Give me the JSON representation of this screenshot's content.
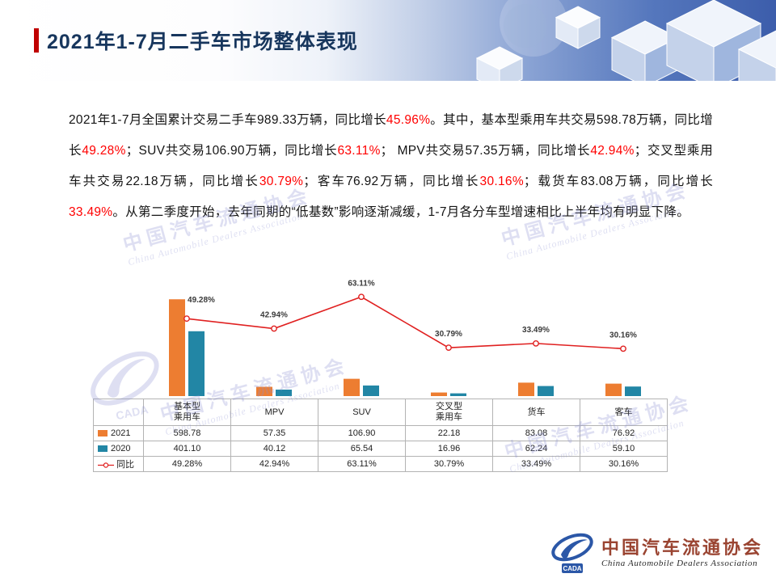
{
  "slide": {
    "title": "2021年1-7月二手车市场整体表现"
  },
  "paragraph": {
    "highlight_color": "#ff0000",
    "segments": [
      {
        "text": "2021年1-7月全国累计交易二手车989.33万辆，同比增长",
        "highlight": false
      },
      {
        "text": "45.96%",
        "highlight": true
      },
      {
        "text": "。其中，基本型乘用车共交易598.78万辆，同比增长",
        "highlight": false
      },
      {
        "text": "49.28%",
        "highlight": true
      },
      {
        "text": "；SUV共交易106.90万辆，同比增长",
        "highlight": false
      },
      {
        "text": "63.11%",
        "highlight": true
      },
      {
        "text": "； MPV共交易57.35万辆，同比增长",
        "highlight": false
      },
      {
        "text": "42.94%",
        "highlight": true
      },
      {
        "text": "；交叉型乘用车共交易22.18万辆，同比增长",
        "highlight": false
      },
      {
        "text": "30.79%",
        "highlight": true
      },
      {
        "text": "；客车76.92万辆，同比增长",
        "highlight": false
      },
      {
        "text": "30.16%",
        "highlight": true
      },
      {
        "text": "；载货车83.08万辆，同比增长",
        "highlight": false
      },
      {
        "text": "33.49%",
        "highlight": true
      },
      {
        "text": "。从第二季度开始，去年同期的“低基数”影响逐渐减缓，1-7月各分车型增速相比上半年均有明显下降。",
        "highlight": false
      }
    ]
  },
  "chart_data": {
    "type": "bar",
    "subtype": "bar+line-combo",
    "categories": [
      "基本型乘用车",
      "MPV",
      "SUV",
      "交叉型乘用车",
      "货车",
      "客车"
    ],
    "series": [
      {
        "name": "2021",
        "kind": "bar",
        "color": "#ED7D31",
        "values": [
          598.78,
          57.35,
          106.9,
          22.18,
          83.08,
          76.92
        ]
      },
      {
        "name": "2020",
        "kind": "bar",
        "color": "#2286A5",
        "values": [
          401.1,
          40.12,
          65.54,
          16.96,
          62.24,
          59.1
        ]
      },
      {
        "name": "同比",
        "kind": "line",
        "color": "#E02020",
        "values_pct": [
          49.28,
          42.94,
          63.11,
          30.79,
          33.49,
          30.16
        ],
        "labels": [
          "49.28%",
          "42.94%",
          "63.11%",
          "30.79%",
          "33.49%",
          "30.16%"
        ]
      }
    ],
    "title": "",
    "xlabel": "",
    "ylabel": "",
    "primary_axis": {
      "min": 0,
      "max": 700,
      "visible": false
    },
    "secondary_axis": {
      "min": 0,
      "max": 72,
      "visible": false
    },
    "grid": false,
    "legend_position": "table-left-column"
  },
  "table": {
    "header": [
      "",
      "基本型\n乘用车",
      "MPV",
      "SUV",
      "交叉型\n乘用车",
      "货车",
      "客车"
    ],
    "rows": [
      {
        "label": "2021",
        "marker": "square",
        "color": "#ED7D31",
        "values": [
          "598.78",
          "57.35",
          "106.90",
          "22.18",
          "83.08",
          "76.92"
        ]
      },
      {
        "label": "2020",
        "marker": "square",
        "color": "#2286A5",
        "values": [
          "401.10",
          "40.12",
          "65.54",
          "16.96",
          "62.24",
          "59.10"
        ]
      },
      {
        "label": "同比",
        "marker": "line",
        "color": "#E02020",
        "values": [
          "49.28%",
          "42.94%",
          "63.11%",
          "30.79%",
          "33.49%",
          "30.16%"
        ]
      }
    ]
  },
  "footer": {
    "org_cn": "中国汽车流通协会",
    "org_en": "China Automobile Dealers Association",
    "emblem": "cada-logo"
  },
  "watermark": {
    "line1": "中国汽车流通协会",
    "line2": "China Automobile Dealers Association",
    "logo_text": "CADA"
  },
  "colors": {
    "title": "#17365D",
    "accent_red": "#C00000",
    "bar_2021": "#ED7D31",
    "bar_2020": "#2286A5",
    "line_yoy": "#E02020",
    "header_blue": "#3A5BA3",
    "watermark": "#8B90D2"
  }
}
